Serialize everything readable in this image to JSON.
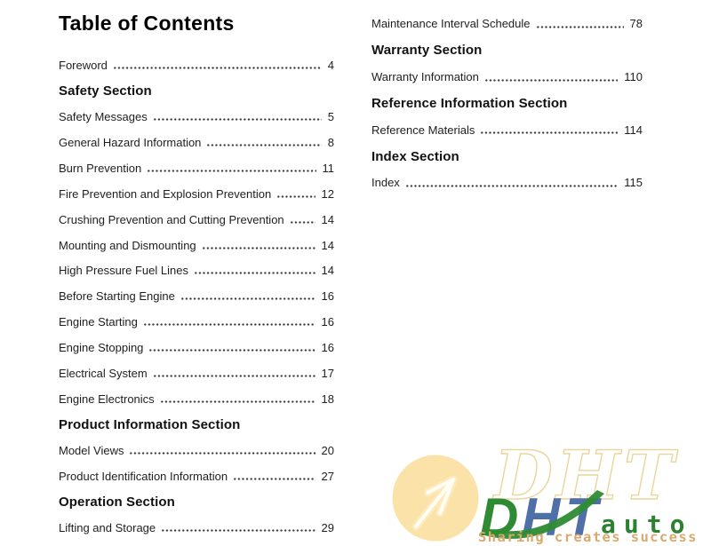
{
  "page": {
    "title": "Table of Contents"
  },
  "toc": {
    "left": [
      {
        "type": "entry",
        "label": "Foreword",
        "page": "4"
      },
      {
        "type": "heading",
        "label": "Safety Section"
      },
      {
        "type": "entry",
        "label": "Safety Messages",
        "page": "5"
      },
      {
        "type": "entry",
        "label": "General Hazard Information",
        "page": "8"
      },
      {
        "type": "entry",
        "label": "Burn Prevention",
        "page": "11"
      },
      {
        "type": "entry",
        "label": "Fire Prevention and Explosion Prevention",
        "page": "12"
      },
      {
        "type": "entry",
        "label": "Crushing Prevention and Cutting Prevention",
        "page": "14"
      },
      {
        "type": "entry",
        "label": "Mounting and Dismounting",
        "page": "14"
      },
      {
        "type": "entry",
        "label": "High Pressure Fuel Lines",
        "page": "14"
      },
      {
        "type": "entry",
        "label": "Before Starting Engine",
        "page": "16"
      },
      {
        "type": "entry",
        "label": "Engine Starting",
        "page": "16"
      },
      {
        "type": "entry",
        "label": "Engine Stopping",
        "page": "16"
      },
      {
        "type": "entry",
        "label": "Electrical System",
        "page": "17"
      },
      {
        "type": "entry",
        "label": "Engine Electronics",
        "page": "18"
      },
      {
        "type": "heading",
        "label": "Product Information Section"
      },
      {
        "type": "entry",
        "label": "Model Views",
        "page": "20"
      },
      {
        "type": "entry",
        "label": "Product Identification Information",
        "page": "27"
      },
      {
        "type": "heading",
        "label": "Operation Section"
      },
      {
        "type": "entry",
        "label": "Lifting and Storage",
        "page": "29"
      }
    ],
    "right": [
      {
        "type": "entry",
        "label": "Maintenance Interval Schedule",
        "page": "78"
      },
      {
        "type": "heading",
        "label": "Warranty Section"
      },
      {
        "type": "entry",
        "label": "Warranty Information",
        "page": "110"
      },
      {
        "type": "heading",
        "label": "Reference Information Section"
      },
      {
        "type": "entry",
        "label": "Reference Materials",
        "page": "114"
      },
      {
        "type": "heading",
        "label": "Index Section"
      },
      {
        "type": "entry",
        "label": "Index",
        "page": "115"
      }
    ]
  },
  "watermark": {
    "outline_text": "DHT",
    "letters": [
      "D",
      "H",
      "T"
    ],
    "logo_sub": "auto",
    "tagline": "Sharing creates success",
    "colors": {
      "green": "#2e8b33",
      "blue": "#4e6fa8",
      "cream_circle": "#fbe2a9",
      "outline_stroke": "#e9d69c",
      "tagline_tan": "#d9a96e"
    }
  }
}
